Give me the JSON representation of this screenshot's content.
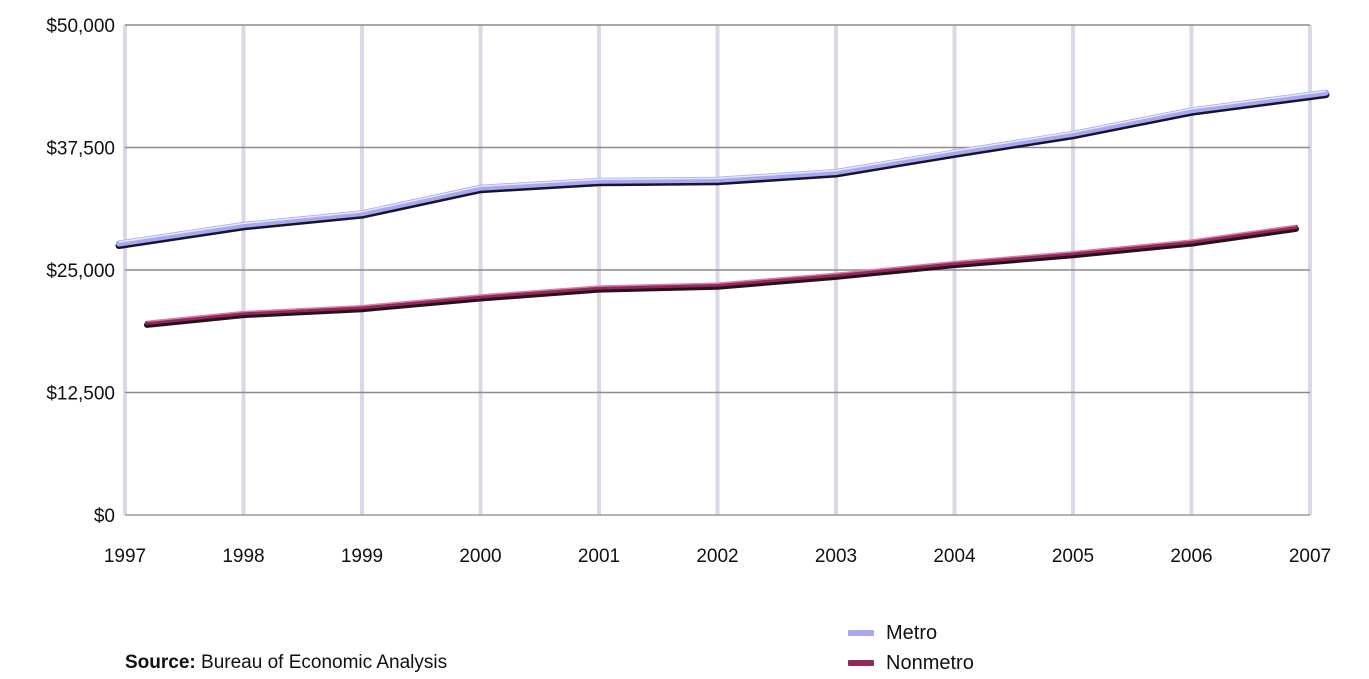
{
  "chart_data": {
    "type": "line",
    "x": [
      "1997",
      "1998",
      "1999",
      "2000",
      "2001",
      "2002",
      "2003",
      "2004",
      "2005",
      "2006",
      "2007"
    ],
    "series": [
      {
        "name": "Metro",
        "color": "#a8a8f0",
        "values": [
          27700,
          29600,
          30800,
          33400,
          34100,
          34200,
          35000,
          37000,
          38900,
          41300,
          43100
        ]
      },
      {
        "name": "Nonmetro",
        "color": "#8e2a5c",
        "values": [
          19600,
          20600,
          21200,
          22300,
          23200,
          23500,
          24500,
          25700,
          26700,
          27900,
          29400
        ]
      }
    ],
    "y_ticks": [
      "$0",
      "$12,500",
      "$25,000",
      "$37,500",
      "$50,000"
    ],
    "ylim": [
      0,
      50000
    ],
    "grid": true,
    "legend_position": "bottom-right"
  },
  "source": {
    "label": "Source:",
    "text": "Bureau of Economic Analysis"
  }
}
